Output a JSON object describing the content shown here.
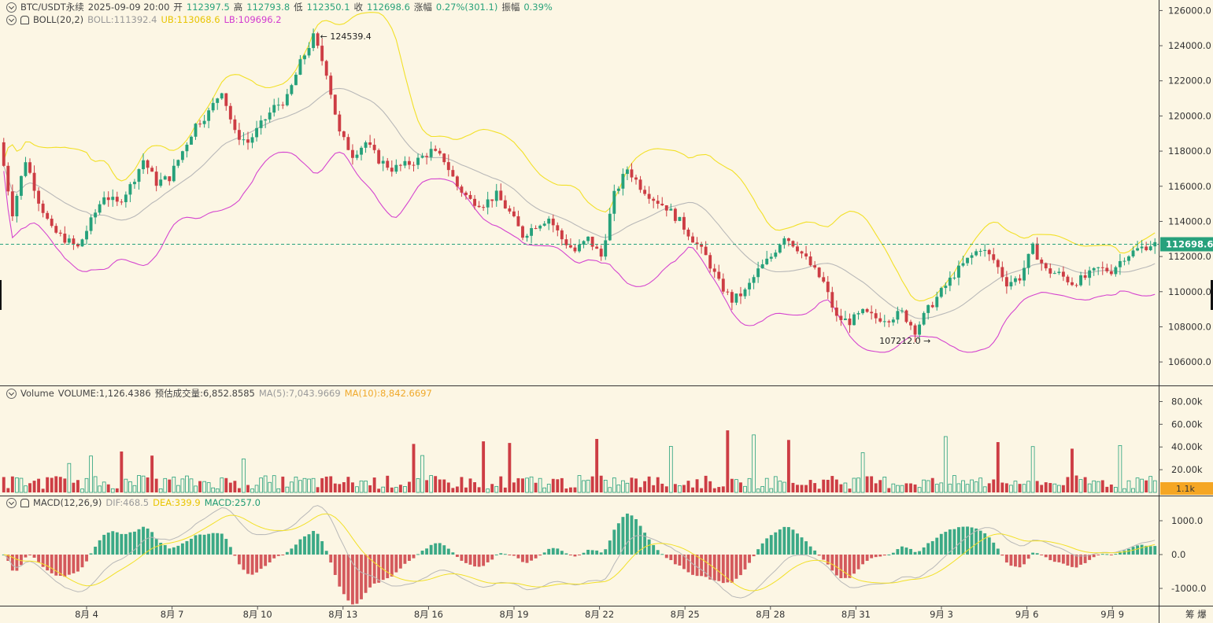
{
  "header": {
    "symbol": "BTC/USDT永续",
    "datetime": "2025-09-09 20:00",
    "open_label": "开",
    "open": "112397.5",
    "high_label": "高",
    "high": "112793.8",
    "low_label": "低",
    "low": "112350.1",
    "close_label": "收",
    "close": "112698.6",
    "change_label": "涨幅",
    "change": "0.27%(301.1)",
    "amp_label": "振幅",
    "amp": "0.39%"
  },
  "boll": {
    "name": "BOLL(20,2)",
    "mid": "BOLL:111392.4",
    "ub": "UB:113068.6",
    "lb": "LB:109696.2"
  },
  "volume": {
    "name": "Volume",
    "volume": "VOLUME:1,126.4386",
    "estimate": "预估成交量:6,852.8585",
    "ma5": "MA(5):7,043.9669",
    "ma10": "MA(10):8,842.6697",
    "badge": "1.1k"
  },
  "macd": {
    "name": "MACD(12,26,9)",
    "dif": "DIF:468.5",
    "dea": "DEA:339.9",
    "macd": "MACD:257.0"
  },
  "price_tag": "112698.6",
  "footer": {
    "label": "筹 爆"
  },
  "colors": {
    "up": "#26a17b",
    "down": "#cd3d44",
    "ub": "#f2e027",
    "lb": "#d545cf",
    "mid": "#b8b8b8",
    "bg": "#fcf6e4",
    "price_line": "#27a17c",
    "ma10": "#f5a623"
  },
  "chart_data": [
    {
      "type": "candlestick",
      "title": "BTC/USDT永续",
      "y_ticks": [
        "126000.0",
        "124000.0",
        "122000.0",
        "120000.0",
        "118000.0",
        "116000.0",
        "114000.0",
        "112000.0",
        "110000.0",
        "108000.0",
        "106000.0"
      ],
      "ylim": [
        105200,
        126600
      ],
      "x_ticks": [
        "8月 4",
        "8月 7",
        "8月 10",
        "8月 13",
        "8月 16",
        "8月 19",
        "8月 22",
        "8月 25",
        "8月 28",
        "8月 31",
        "9月 3",
        "9月 6",
        "9月 9"
      ],
      "annotations": [
        {
          "text": "← 124539.4",
          "value": 124539.4
        },
        {
          "text": "107212.0 →",
          "value": 107212.0
        }
      ],
      "current_price": 112698.6,
      "path_points": [
        [
          0,
          118500
        ],
        [
          3,
          114500
        ],
        [
          6,
          117500
        ],
        [
          9,
          115200
        ],
        [
          12,
          113500
        ],
        [
          15,
          113000
        ],
        [
          18,
          112500
        ],
        [
          21,
          114000
        ],
        [
          24,
          115500
        ],
        [
          27,
          115000
        ],
        [
          30,
          116000
        ],
        [
          33,
          117500
        ],
        [
          36,
          116200
        ],
        [
          39,
          116500
        ],
        [
          42,
          118000
        ],
        [
          45,
          119500
        ],
        [
          48,
          120200
        ],
        [
          51,
          121500
        ],
        [
          54,
          119000
        ],
        [
          57,
          118500
        ],
        [
          60,
          119500
        ],
        [
          63,
          120500
        ],
        [
          66,
          121000
        ],
        [
          69,
          123000
        ],
        [
          72,
          124500
        ],
        [
          75,
          122500
        ],
        [
          78,
          119000
        ],
        [
          81,
          117800
        ],
        [
          84,
          118500
        ],
        [
          87,
          117500
        ],
        [
          90,
          117000
        ],
        [
          93,
          117200
        ],
        [
          96,
          117500
        ],
        [
          99,
          118000
        ],
        [
          102,
          117500
        ],
        [
          105,
          116000
        ],
        [
          108,
          115200
        ],
        [
          111,
          115000
        ],
        [
          114,
          115500
        ],
        [
          117,
          114500
        ],
        [
          120,
          113200
        ],
        [
          123,
          113800
        ],
        [
          126,
          114200
        ],
        [
          129,
          113000
        ],
        [
          132,
          112300
        ],
        [
          135,
          113000
        ],
        [
          138,
          112000
        ],
        [
          141,
          115500
        ],
        [
          144,
          117000
        ],
        [
          147,
          116000
        ],
        [
          150,
          115300
        ],
        [
          153,
          114800
        ],
        [
          156,
          114000
        ],
        [
          159,
          113000
        ],
        [
          162,
          112000
        ],
        [
          165,
          110500
        ],
        [
          168,
          109500
        ],
        [
          171,
          110000
        ],
        [
          174,
          111200
        ],
        [
          177,
          112000
        ],
        [
          180,
          113200
        ],
        [
          183,
          112500
        ],
        [
          186,
          111500
        ],
        [
          189,
          110500
        ],
        [
          192,
          108500
        ],
        [
          195,
          108300
        ],
        [
          198,
          108800
        ],
        [
          201,
          108500
        ],
        [
          204,
          108500
        ],
        [
          207,
          108800
        ],
        [
          210,
          107800
        ],
        [
          213,
          109000
        ],
        [
          216,
          110000
        ],
        [
          219,
          111000
        ],
        [
          222,
          111800
        ],
        [
          225,
          112500
        ],
        [
          228,
          111800
        ],
        [
          231,
          110500
        ],
        [
          234,
          110800
        ],
        [
          237,
          112500
        ],
        [
          240,
          111200
        ],
        [
          243,
          111000
        ],
        [
          246,
          110500
        ],
        [
          249,
          110800
        ],
        [
          252,
          111300
        ],
        [
          255,
          111200
        ],
        [
          258,
          112000
        ],
        [
          261,
          112400
        ],
        [
          264,
          112700
        ]
      ],
      "volume_axis": [
        "80.00k",
        "60.00k",
        "40.00k",
        "20.00k"
      ],
      "macd_axis": [
        "1000.0",
        "0.0",
        "-1000.0"
      ]
    }
  ]
}
